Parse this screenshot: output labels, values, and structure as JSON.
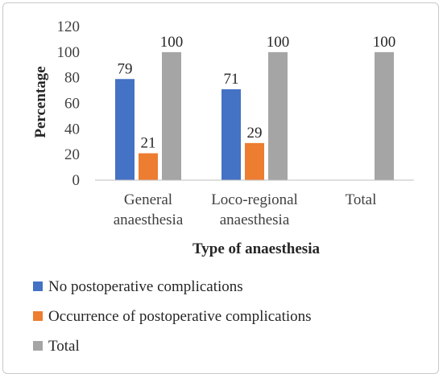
{
  "chart_data": {
    "type": "bar",
    "categories": [
      [
        "General",
        "anaesthesia"
      ],
      [
        "Loco-regional",
        "anaesthesia"
      ],
      [
        "Total"
      ]
    ],
    "series": [
      {
        "name": "No postoperative complications",
        "color": "#4472C4",
        "values": [
          79,
          71,
          null
        ]
      },
      {
        "name": "Occurrence of postoperative complications",
        "color": "#ED7D31",
        "values": [
          21,
          29,
          null
        ]
      },
      {
        "name": "Total",
        "color": "#A5A5A5",
        "values": [
          100,
          100,
          100
        ]
      }
    ],
    "xlabel": "Type of anaesthesia",
    "ylabel": "Percentage",
    "ylim": [
      0,
      120
    ],
    "yticks": [
      0,
      20,
      40,
      60,
      80,
      100,
      120
    ],
    "grid": false,
    "legend": "bottom"
  }
}
